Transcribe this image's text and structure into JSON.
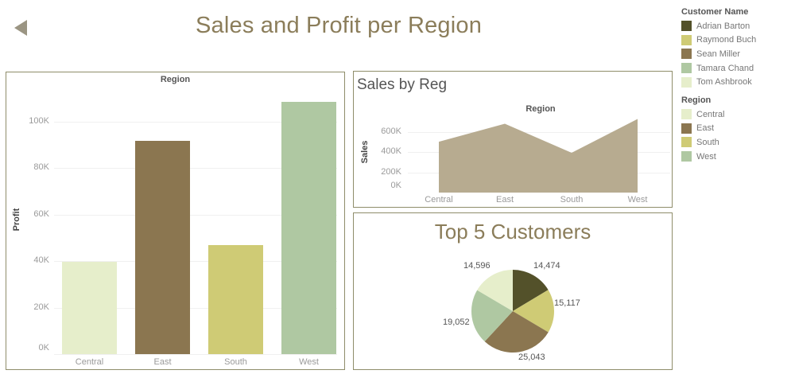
{
  "header": {
    "title": "Sales and Profit per Region",
    "back_icon": "triangle-left-icon"
  },
  "colors": {
    "title": "#8b7d5a",
    "panel_border": "#8f8d6a",
    "Central": "#e6eecb",
    "East": "#8b7650",
    "South": "#cfcb75",
    "West": "#afc8a2",
    "area_fill": "#b7ab90",
    "Adrian Barton": "#53512a",
    "Raymond Buch": "#cfcb75",
    "Sean Miller": "#8b7650",
    "Tamara Chand": "#afc8a2",
    "Tom Ashbrook": "#e6eecb"
  },
  "legend": {
    "customer": {
      "title": "Customer Name",
      "items": [
        {
          "label": "Adrian Barton",
          "color": "#53512a"
        },
        {
          "label": "Raymond Buch",
          "color": "#cfcb75"
        },
        {
          "label": "Sean Miller",
          "color": "#8b7650"
        },
        {
          "label": "Tamara Chand",
          "color": "#afc8a2"
        },
        {
          "label": "Tom Ashbrook",
          "color": "#e6eecb"
        }
      ]
    },
    "region": {
      "title": "Region",
      "items": [
        {
          "label": "Central",
          "color": "#e6eecb"
        },
        {
          "label": "East",
          "color": "#8b7650"
        },
        {
          "label": "South",
          "color": "#cfcb75"
        },
        {
          "label": "West",
          "color": "#afc8a2"
        }
      ]
    }
  },
  "profit_panel": {
    "header": "Region",
    "ylabel": "Profit",
    "yticks": [
      "0K",
      "20K",
      "40K",
      "60K",
      "80K",
      "100K"
    ],
    "categories": [
      "Central",
      "East",
      "South",
      "West"
    ]
  },
  "sales_panel": {
    "title": "Sales by Reg",
    "header": "Region",
    "ylabel": "Sales",
    "yticks": [
      "0K",
      "200K",
      "400K",
      "600K"
    ],
    "categories": [
      "Central",
      "East",
      "South",
      "West"
    ]
  },
  "customers_panel": {
    "title": "Top 5 Customers",
    "labels": [
      "14,474",
      "15,117",
      "25,043",
      "19,052",
      "14,596"
    ]
  },
  "chart_data": [
    {
      "type": "bar",
      "title": "",
      "header": "Region",
      "categories": [
        "Central",
        "East",
        "South",
        "West"
      ],
      "values": [
        39706,
        91523,
        46749,
        108418
      ],
      "colors": [
        "#e6eecb",
        "#8b7650",
        "#cfcb75",
        "#afc8a2"
      ],
      "xlabel": "",
      "ylabel": "Profit",
      "yticks": [
        0,
        20000,
        40000,
        60000,
        80000,
        100000
      ],
      "ylim": [
        0,
        115000
      ],
      "grid": true,
      "legend_position": "right"
    },
    {
      "type": "area",
      "title": "Sales by Reg",
      "header": "Region",
      "categories": [
        "Central",
        "East",
        "South",
        "West"
      ],
      "values": [
        501240,
        678781,
        391722,
        725458
      ],
      "color": "#b7ab90",
      "xlabel": "",
      "ylabel": "Sales",
      "yticks": [
        0,
        200000,
        400000,
        600000
      ],
      "ylim": [
        0,
        760000
      ],
      "grid": true
    },
    {
      "type": "pie",
      "title": "Top 5 Customers",
      "categories": [
        "Adrian Barton",
        "Raymond Buch",
        "Sean Miller",
        "Tamara Chand",
        "Tom Ashbrook"
      ],
      "values": [
        14474,
        15117,
        25043,
        19052,
        14596
      ],
      "colors": [
        "#53512a",
        "#cfcb75",
        "#8b7650",
        "#afc8a2",
        "#e6eecb"
      ],
      "labels": [
        "14,474",
        "15,117",
        "25,043",
        "19,052",
        "14,596"
      ],
      "legend_position": "right"
    }
  ]
}
